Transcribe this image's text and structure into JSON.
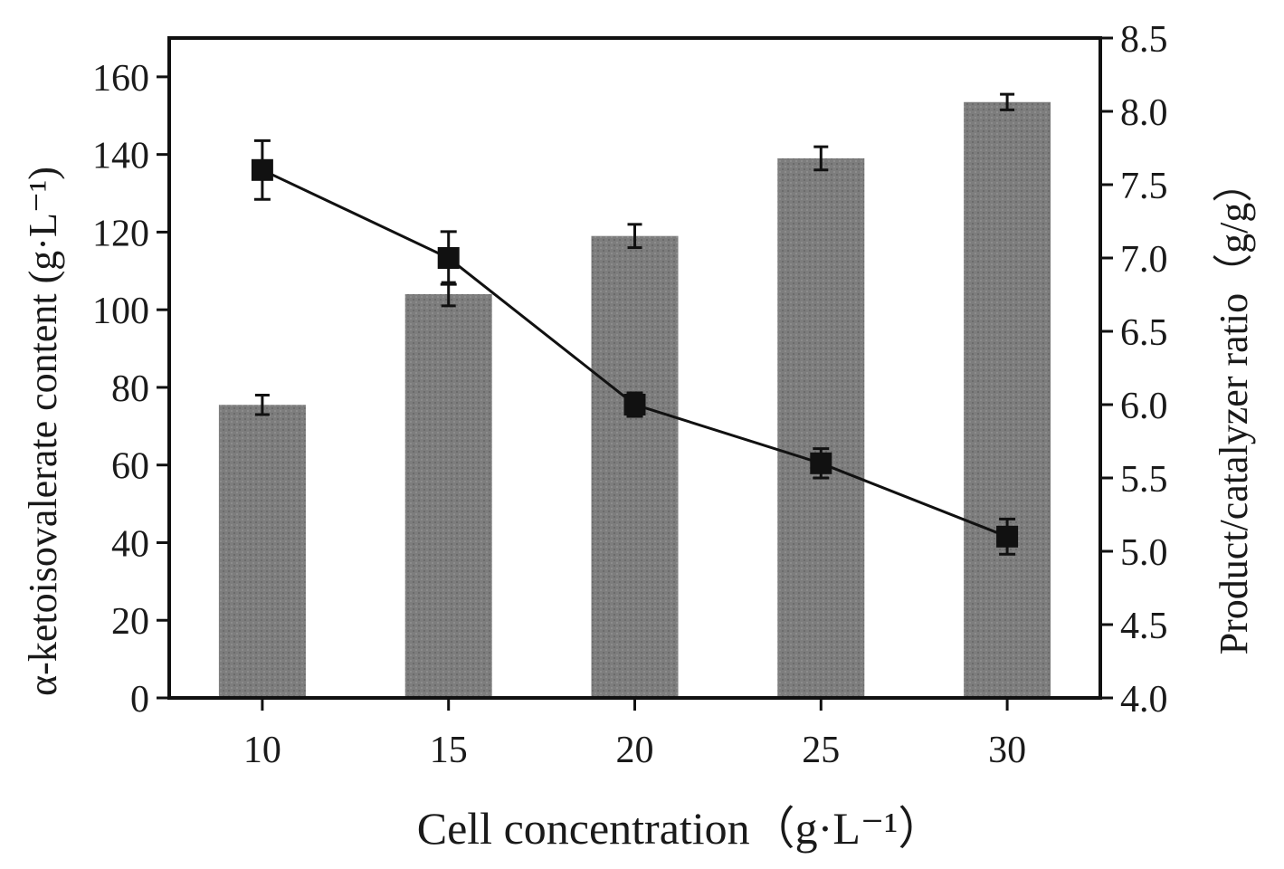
{
  "chart_data": {
    "type": "bar",
    "categories": [
      "10",
      "15",
      "20",
      "25",
      "30"
    ],
    "xlabel": "Cell concentration（g·L⁻¹）",
    "ylabel": "α-ketoisovalerate content (g·L⁻¹)",
    "y2label": "Product/catalyzer ratio（g/g）",
    "ylim": [
      0,
      170
    ],
    "y2lim": [
      4.0,
      8.5
    ],
    "yticks": [
      "0",
      "20",
      "40",
      "60",
      "80",
      "100",
      "120",
      "140",
      "160"
    ],
    "y2ticks": [
      "4.0",
      "4.5",
      "5.0",
      "5.5",
      "6.0",
      "6.5",
      "7.0",
      "7.5",
      "8.0",
      "8.5"
    ],
    "grid": false,
    "series": [
      {
        "kind": "bar",
        "axis": "left",
        "values": [
          75.5,
          104,
          119,
          139,
          153.5
        ],
        "errors": [
          2.5,
          3,
          3,
          3,
          2
        ],
        "color": "#7a7a7a"
      },
      {
        "kind": "line",
        "axis": "right",
        "marker": "square",
        "values": [
          7.6,
          7.0,
          6.0,
          5.6,
          5.1
        ],
        "errors": [
          0.2,
          0.18,
          0.08,
          0.1,
          0.12
        ],
        "color": "#111111"
      }
    ]
  }
}
